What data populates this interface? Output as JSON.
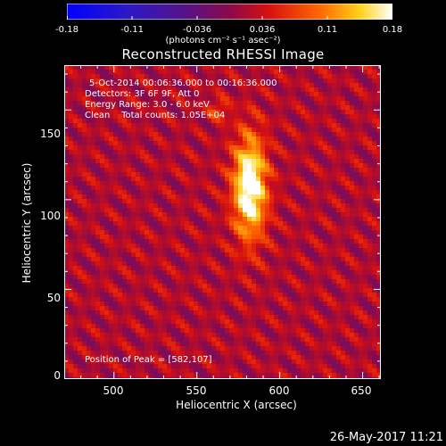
{
  "colorbar": {
    "ticks": [
      "-0.18",
      "-0.11",
      "-0.036",
      "0.036",
      "0.11",
      "0.18"
    ],
    "units_label": "(photons cm⁻² s⁻¹ asec⁻²)",
    "colormap": "blue-purple-red-yellow-white"
  },
  "chart_data": {
    "type": "heatmap",
    "title": "Reconstructed RHESSI Image",
    "xlabel": "Heliocentric X (arcsec)",
    "ylabel": "Heliocentric Y (arcsec)",
    "xlim": [
      470,
      661
    ],
    "ylim": [
      0,
      175
    ],
    "x_ticks": [
      500,
      550,
      600,
      650
    ],
    "y_ticks": [
      0,
      50,
      100,
      150
    ],
    "zlim": [
      -0.18,
      0.18
    ],
    "peak_position": [
      582,
      107
    ],
    "annotations": {
      "time": "5-Oct-2014 00:06:36.000 to 00:16:36.000",
      "detectors": "Detectors: 3F 6F 9F, Att 0",
      "energy": "Energy Range: 3.0 - 6.0 keV",
      "method": "Clean    Total counts: 1.05E+04",
      "peak": "Position of Peak = [582,107]"
    }
  },
  "footer": {
    "timestamp": "26-May-2017 11:21"
  }
}
